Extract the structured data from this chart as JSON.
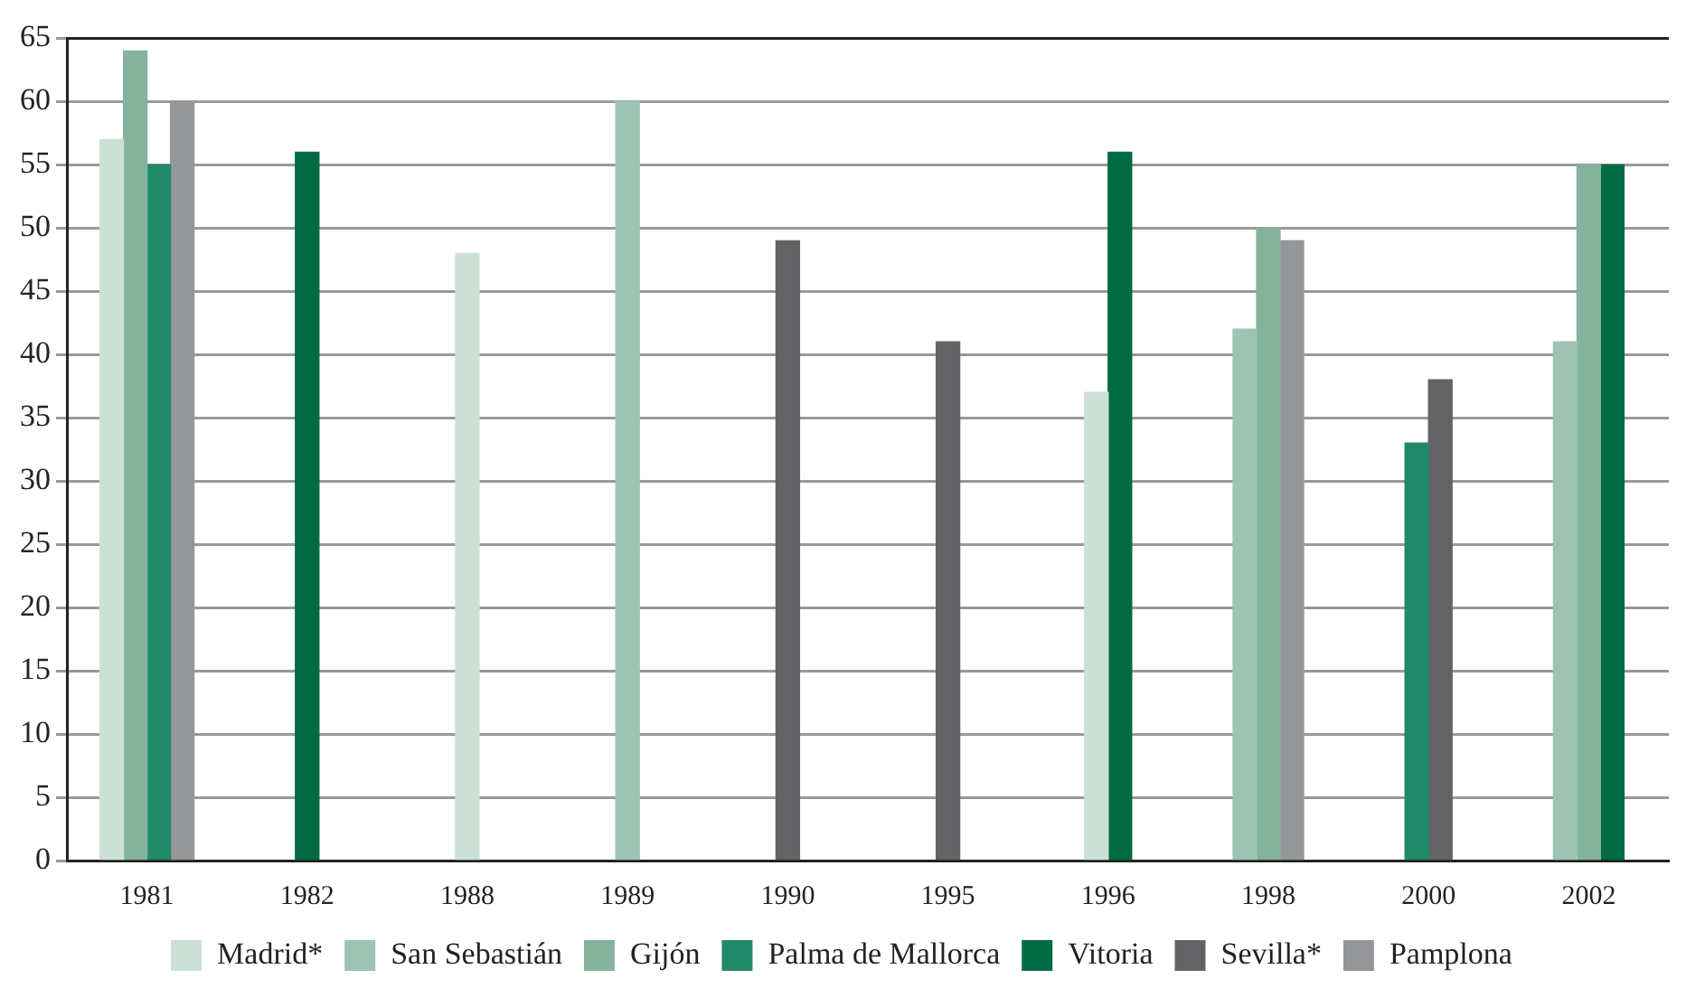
{
  "chart_data": {
    "type": "bar",
    "categories": [
      "1981",
      "1982",
      "1988",
      "1989",
      "1990",
      "1995",
      "1996",
      "1998",
      "2000",
      "2002"
    ],
    "series": [
      {
        "name": "Madrid*",
        "color": "#cce0d6",
        "values": [
          57,
          null,
          48,
          null,
          null,
          null,
          37,
          null,
          null,
          null
        ]
      },
      {
        "name": "San Sebastián",
        "color": "#9dc3b2",
        "values": [
          null,
          null,
          null,
          60,
          null,
          null,
          null,
          42,
          null,
          41
        ]
      },
      {
        "name": "Gijón",
        "color": "#84b39d",
        "values": [
          64,
          null,
          null,
          null,
          null,
          null,
          null,
          50,
          null,
          55
        ]
      },
      {
        "name": "Palma de Mallorca",
        "color": "#21896a",
        "values": [
          55,
          null,
          null,
          null,
          null,
          null,
          null,
          null,
          33,
          null
        ]
      },
      {
        "name": "Vitoria",
        "color": "#006a42",
        "values": [
          null,
          56,
          null,
          null,
          null,
          null,
          56,
          null,
          null,
          55
        ]
      },
      {
        "name": "Sevilla*",
        "color": "#636365",
        "values": [
          null,
          null,
          null,
          null,
          49,
          41,
          null,
          null,
          38,
          null
        ]
      },
      {
        "name": "Pamplona",
        "color": "#959699",
        "values": [
          60,
          null,
          null,
          null,
          null,
          null,
          null,
          49,
          null,
          null
        ]
      }
    ],
    "ylim": [
      0,
      65
    ],
    "yticks": [
      0,
      5,
      10,
      15,
      20,
      25,
      30,
      35,
      40,
      45,
      50,
      55,
      60,
      65
    ],
    "grid": "y",
    "legend": "bottom"
  }
}
